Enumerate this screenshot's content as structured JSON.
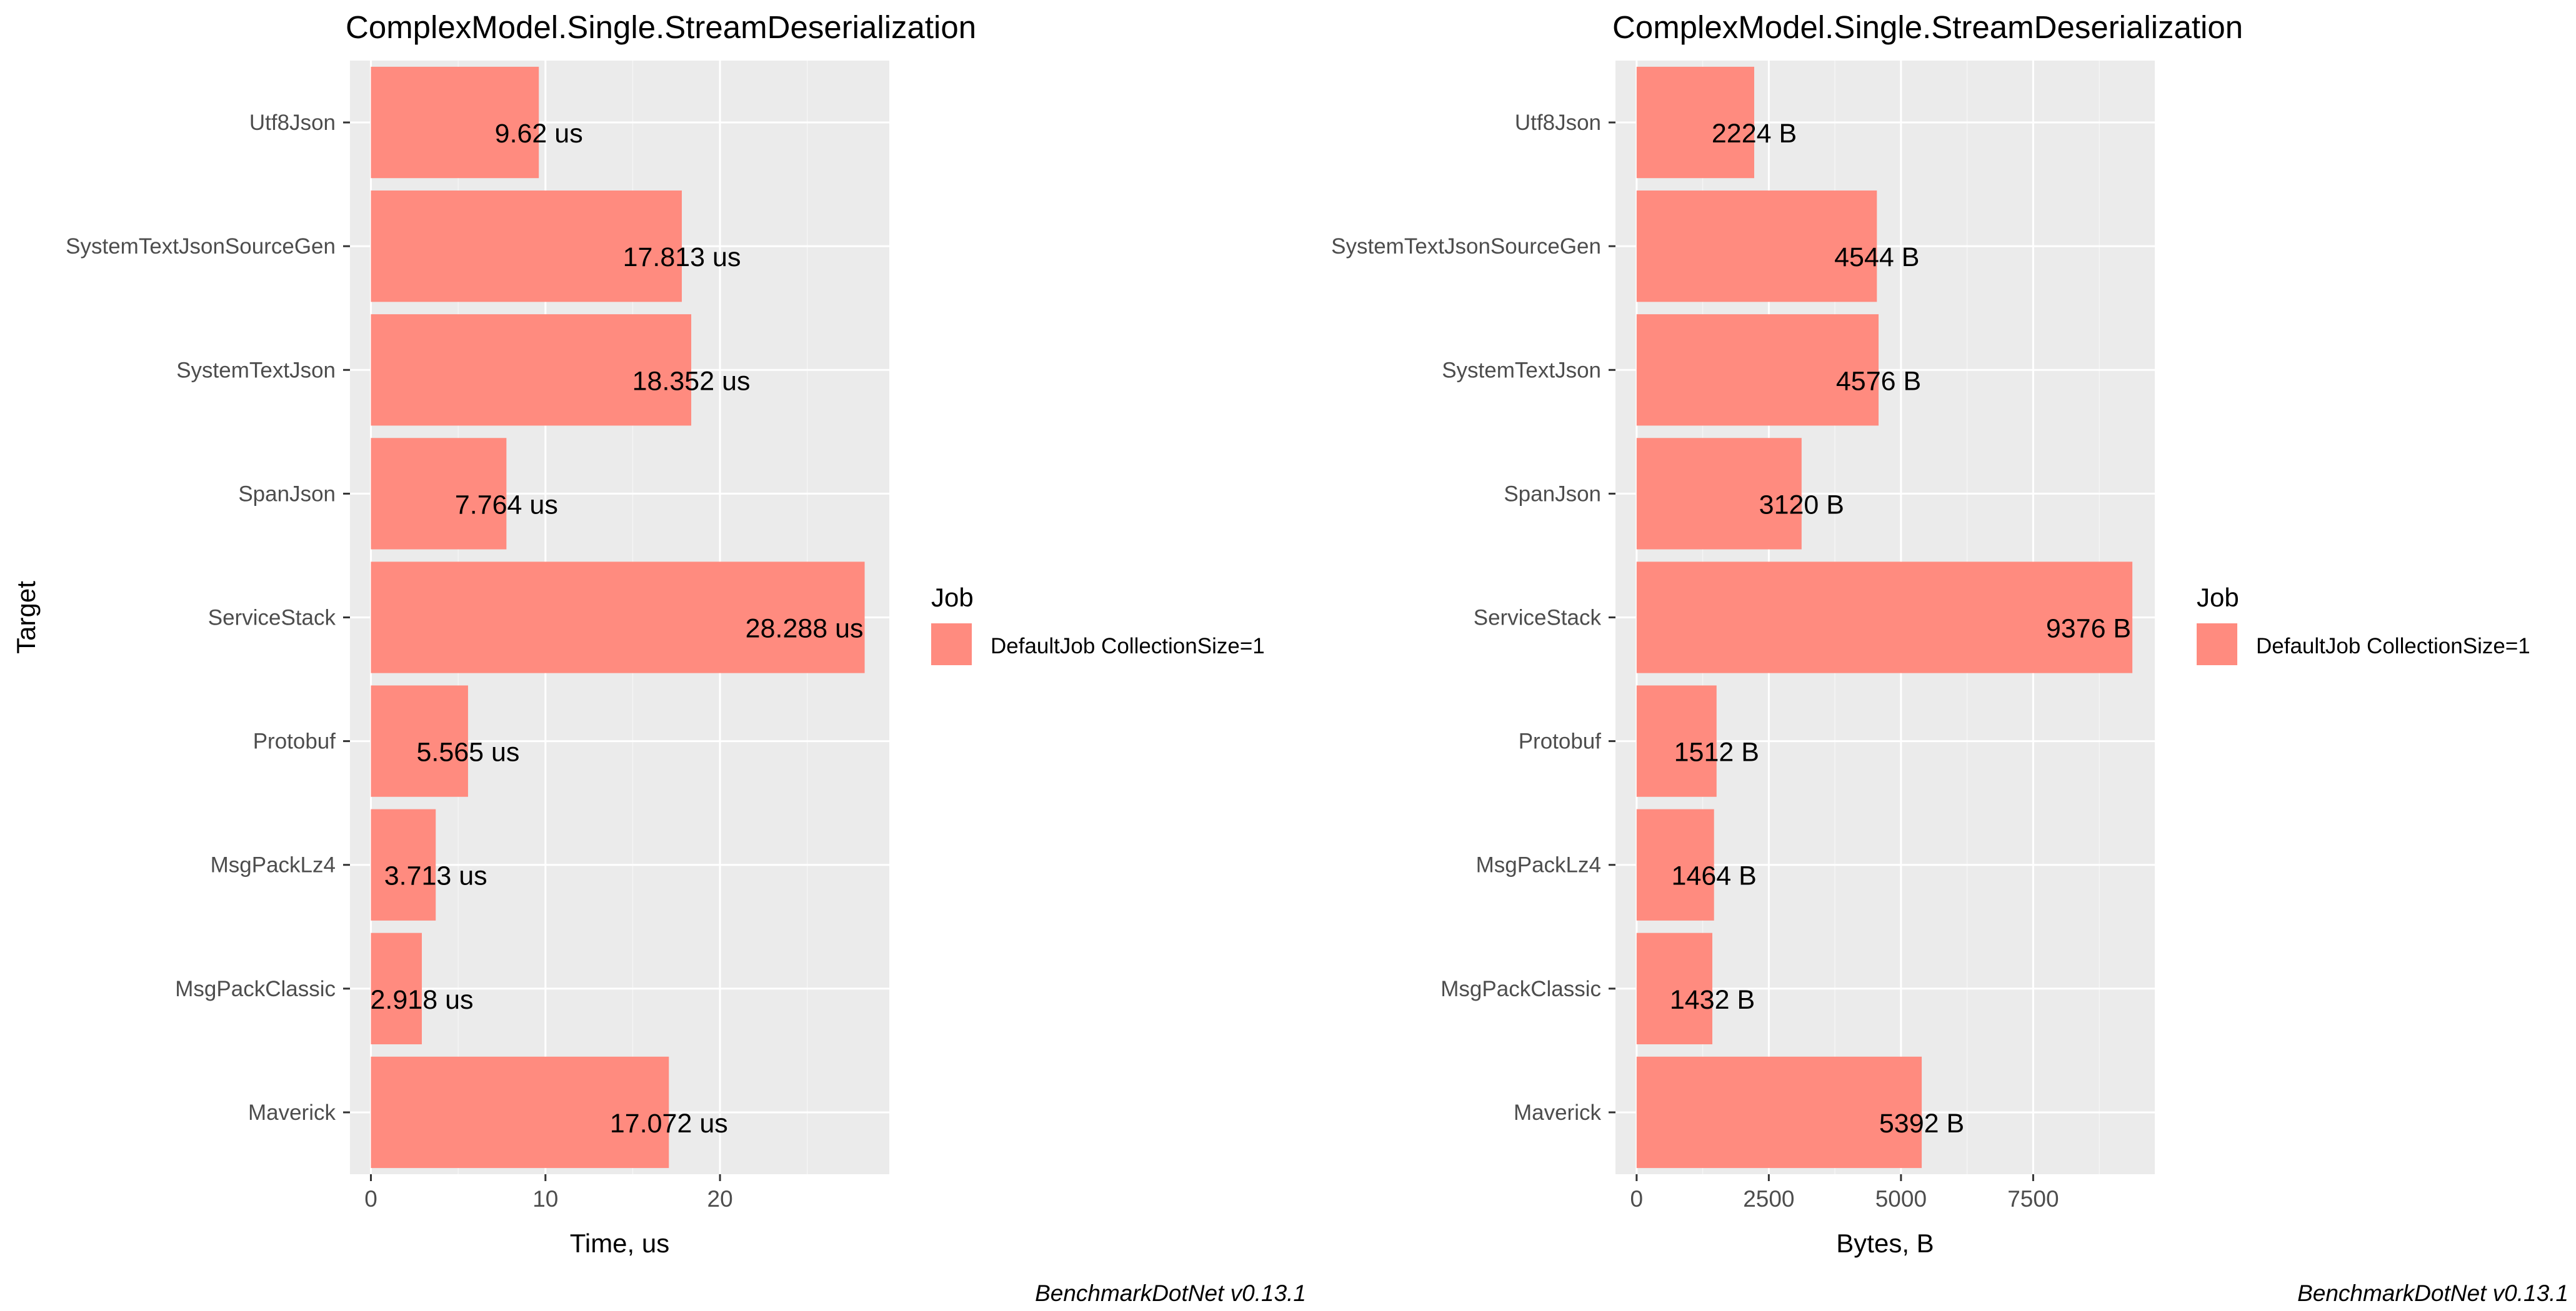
{
  "chart_data": [
    {
      "type": "bar",
      "orientation": "horizontal",
      "title": "ComplexModel.Single.StreamDeserialization",
      "xlabel": "Time, us",
      "ylabel": "Target",
      "categories": [
        "Utf8Json",
        "SystemTextJsonSourceGen",
        "SystemTextJson",
        "SpanJson",
        "ServiceStack",
        "Protobuf",
        "MsgPackLz4",
        "MsgPackClassic",
        "Maverick"
      ],
      "series": [
        {
          "name": "DefaultJob CollectionSize=1",
          "values": [
            9.62,
            17.813,
            18.352,
            7.764,
            28.288,
            5.565,
            3.713,
            2.918,
            17.072
          ]
        }
      ],
      "data_labels": [
        "9.62 us",
        "17.813 us",
        "18.352 us",
        "7.764 us",
        "28.288 us",
        "5.565 us",
        "3.713 us",
        "2.918 us",
        "17.072 us"
      ],
      "xticks": [
        0,
        10,
        20
      ],
      "xtick_labels": [
        "0",
        "10",
        "20"
      ],
      "xlim": [
        -1.2,
        29.7
      ],
      "grid": true,
      "legend": {
        "title": "Job",
        "placement": "right"
      },
      "caption": "BenchmarkDotNet v0.13.1"
    },
    {
      "type": "bar",
      "orientation": "horizontal",
      "title": "ComplexModel.Single.StreamDeserialization",
      "xlabel": "Bytes, B",
      "ylabel": "",
      "categories": [
        "Utf8Json",
        "SystemTextJsonSourceGen",
        "SystemTextJson",
        "SpanJson",
        "ServiceStack",
        "Protobuf",
        "MsgPackLz4",
        "MsgPackClassic",
        "Maverick"
      ],
      "series": [
        {
          "name": "DefaultJob CollectionSize=1",
          "values": [
            2224,
            4544,
            4576,
            3120,
            9376,
            1512,
            1464,
            1432,
            5392
          ]
        }
      ],
      "data_labels": [
        "2224 B",
        "4544 B",
        "4576 B",
        "3120 B",
        "9376 B",
        "1512 B",
        "1464 B",
        "1432 B",
        "5392 B"
      ],
      "xticks": [
        0,
        2500,
        5000,
        7500
      ],
      "xtick_labels": [
        "0",
        "2500",
        "5000",
        "7500"
      ],
      "xlim": [
        -400,
        9800
      ],
      "grid": true,
      "legend": {
        "title": "Job",
        "placement": "right"
      },
      "caption": "BenchmarkDotNet v0.13.1"
    }
  ],
  "colors": {
    "bar": "#FF8B7F",
    "panel_bg": "#EBEBEB",
    "grid_major": "#FFFFFF",
    "grid_minor": "#F5F5F5"
  }
}
